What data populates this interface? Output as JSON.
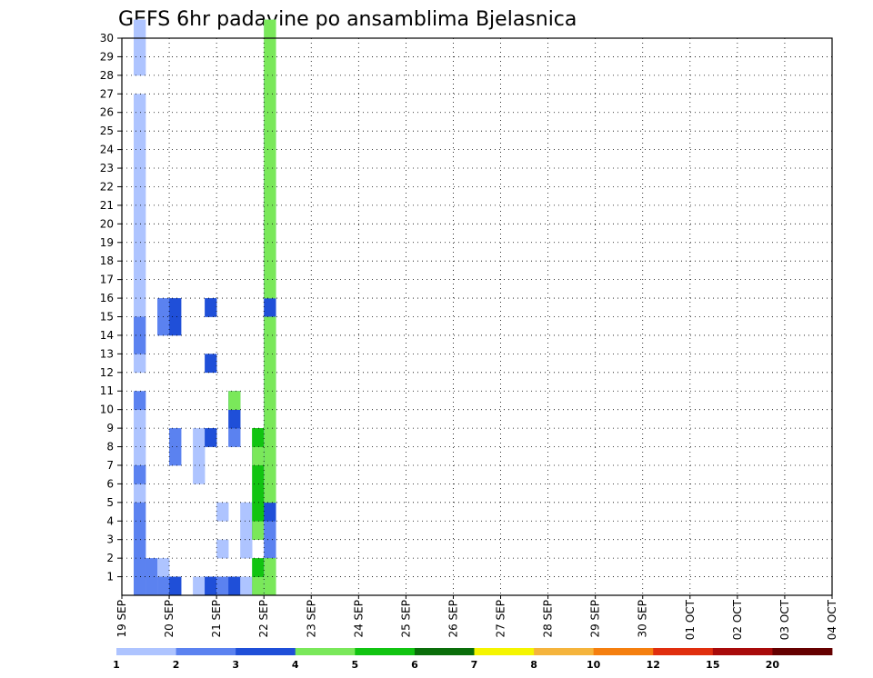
{
  "chart_data": {
    "type": "heatmap",
    "title": "GEFS 6hr padavine po ansamblima Bjelasnica",
    "xlabel": "",
    "ylabel": "",
    "ylim": [
      0,
      30
    ],
    "y_ticks": [
      "1",
      "2",
      "3",
      "4",
      "5",
      "6",
      "7",
      "8",
      "9",
      "10",
      "11",
      "12",
      "13",
      "14",
      "15",
      "16",
      "17",
      "18",
      "19",
      "20",
      "21",
      "22",
      "23",
      "24",
      "25",
      "26",
      "27",
      "28",
      "29",
      "30"
    ],
    "x_ticks": [
      "19 SEP",
      "20 SEP",
      "21 SEP",
      "22 SEP",
      "23 SEP",
      "24 SEP",
      "25 SEP",
      "26 SEP",
      "27 SEP",
      "28 SEP",
      "29 SEP",
      "30 SEP",
      "01 OCT",
      "02 OCT",
      "03 OCT",
      "04 OCT"
    ],
    "time_steps_per_day": 4,
    "grid": true,
    "legend": {
      "placement": "bottom",
      "levels": [
        "1",
        "2",
        "3",
        "4",
        "5",
        "6",
        "7",
        "8",
        "10",
        "12",
        "15",
        "20"
      ],
      "colors": [
        "#aec4ff",
        "#5b82f0",
        "#1f4fd8",
        "#7ae85a",
        "#11c411",
        "#0a6e0a",
        "#f5f500",
        "#f5b43c",
        "#f57f0f",
        "#e02e0e",
        "#a80a0a",
        "#650000"
      ]
    },
    "cells": [
      [
        1,
        1,
        0
      ],
      [
        1,
        1,
        1
      ],
      [
        1,
        1,
        2
      ],
      [
        1,
        1,
        3
      ],
      [
        1,
        1,
        5
      ],
      [
        1,
        1,
        6
      ],
      [
        1,
        1,
        7
      ],
      [
        1,
        1,
        8
      ],
      [
        1,
        1,
        9
      ],
      [
        1,
        1,
        12
      ],
      [
        1,
        1,
        15
      ],
      [
        1,
        1,
        16
      ],
      [
        1,
        1,
        17
      ],
      [
        1,
        1,
        18
      ],
      [
        1,
        1,
        19
      ],
      [
        1,
        1,
        20
      ],
      [
        1,
        1,
        21
      ],
      [
        1,
        1,
        22
      ],
      [
        1,
        1,
        23
      ],
      [
        1,
        1,
        24
      ],
      [
        1,
        1,
        25
      ],
      [
        1,
        1,
        26
      ],
      [
        1,
        1,
        28
      ],
      [
        1,
        1,
        29
      ],
      [
        1,
        1,
        30
      ],
      [
        1,
        2,
        0
      ],
      [
        1,
        2,
        1
      ],
      [
        1,
        2,
        2
      ],
      [
        1,
        2,
        3
      ],
      [
        1,
        2,
        4
      ],
      [
        1,
        2,
        6
      ],
      [
        1,
        2,
        10
      ],
      [
        1,
        2,
        13
      ],
      [
        1,
        2,
        14
      ],
      [
        2,
        1,
        0
      ],
      [
        2,
        2,
        0
      ],
      [
        2,
        2,
        1
      ],
      [
        3,
        1,
        0
      ],
      [
        3,
        1,
        1
      ],
      [
        3,
        2,
        0
      ],
      [
        3,
        2,
        14
      ],
      [
        3,
        2,
        15
      ],
      [
        4,
        1,
        0
      ],
      [
        4,
        1,
        7
      ],
      [
        4,
        1,
        8
      ],
      [
        4,
        2,
        0
      ],
      [
        4,
        2,
        7
      ],
      [
        4,
        2,
        8
      ],
      [
        4,
        3,
        0
      ],
      [
        4,
        3,
        14
      ],
      [
        4,
        3,
        15
      ],
      [
        6,
        1,
        0
      ],
      [
        6,
        1,
        6
      ],
      [
        6,
        1,
        7
      ],
      [
        6,
        1,
        8
      ],
      [
        7,
        1,
        0
      ],
      [
        7,
        2,
        0
      ],
      [
        7,
        3,
        0
      ],
      [
        7,
        3,
        8
      ],
      [
        7,
        3,
        12
      ],
      [
        7,
        3,
        15
      ],
      [
        8,
        1,
        0
      ],
      [
        8,
        1,
        2
      ],
      [
        8,
        1,
        4
      ],
      [
        8,
        2,
        0
      ],
      [
        9,
        2,
        0
      ],
      [
        9,
        2,
        8
      ],
      [
        9,
        3,
        0
      ],
      [
        9,
        3,
        9
      ],
      [
        9,
        3,
        10
      ],
      [
        9,
        4,
        10
      ],
      [
        10,
        1,
        0
      ],
      [
        10,
        1,
        2
      ],
      [
        10,
        1,
        3
      ],
      [
        10,
        1,
        4
      ],
      [
        11,
        1,
        0
      ],
      [
        11,
        1,
        3
      ],
      [
        11,
        2,
        0
      ],
      [
        11,
        2,
        3
      ],
      [
        11,
        3,
        3
      ],
      [
        11,
        3,
        7
      ],
      [
        11,
        4,
        0
      ],
      [
        11,
        4,
        3
      ],
      [
        11,
        4,
        7
      ],
      [
        11,
        4,
        8
      ],
      [
        11,
        5,
        1
      ],
      [
        11,
        5,
        4
      ],
      [
        11,
        5,
        5
      ],
      [
        11,
        5,
        6
      ],
      [
        11,
        5,
        8
      ],
      [
        12,
        1,
        0
      ],
      [
        12,
        1,
        1
      ],
      [
        12,
        1,
        2
      ],
      [
        12,
        1,
        3
      ],
      [
        12,
        1,
        7
      ],
      [
        12,
        1,
        8
      ],
      [
        12,
        1,
        9
      ],
      [
        12,
        1,
        10
      ],
      [
        12,
        1,
        12
      ],
      [
        12,
        1,
        13
      ],
      [
        12,
        1,
        14
      ],
      [
        12,
        1,
        15
      ],
      [
        12,
        1,
        16
      ],
      [
        12,
        1,
        17
      ],
      [
        12,
        1,
        18
      ],
      [
        12,
        1,
        19
      ],
      [
        12,
        1,
        20
      ],
      [
        12,
        1,
        21
      ],
      [
        12,
        1,
        22
      ],
      [
        12,
        1,
        23
      ],
      [
        12,
        1,
        24
      ],
      [
        12,
        1,
        25
      ],
      [
        12,
        1,
        26
      ],
      [
        12,
        1,
        27
      ],
      [
        12,
        1,
        28
      ],
      [
        12,
        1,
        29
      ],
      [
        12,
        1,
        30
      ],
      [
        12,
        2,
        0
      ],
      [
        12,
        2,
        1
      ],
      [
        12,
        2,
        2
      ],
      [
        12,
        2,
        3
      ],
      [
        12,
        2,
        6
      ],
      [
        12,
        2,
        7
      ],
      [
        12,
        2,
        8
      ],
      [
        12,
        2,
        9
      ],
      [
        12,
        2,
        10
      ],
      [
        12,
        2,
        11
      ],
      [
        12,
        2,
        13
      ],
      [
        12,
        2,
        14
      ],
      [
        12,
        2,
        16
      ],
      [
        12,
        2,
        17
      ],
      [
        12,
        2,
        18
      ],
      [
        12,
        2,
        19
      ],
      [
        12,
        2,
        20
      ],
      [
        12,
        2,
        21
      ],
      [
        12,
        2,
        22
      ],
      [
        12,
        2,
        24
      ],
      [
        12,
        2,
        25
      ],
      [
        12,
        2,
        26
      ],
      [
        12,
        2,
        27
      ],
      [
        12,
        3,
        1
      ],
      [
        12,
        3,
        4
      ],
      [
        12,
        3,
        5
      ],
      [
        12,
        3,
        6
      ],
      [
        12,
        3,
        7
      ],
      [
        12,
        3,
        8
      ],
      [
        12,
        3,
        9
      ],
      [
        12,
        3,
        10
      ],
      [
        12,
        3,
        11
      ],
      [
        12,
        3,
        12
      ],
      [
        12,
        3,
        13
      ],
      [
        12,
        3,
        14
      ],
      [
        12,
        3,
        15
      ],
      [
        12,
        3,
        16
      ],
      [
        12,
        3,
        17
      ],
      [
        12,
        3,
        18
      ],
      [
        12,
        3,
        19
      ],
      [
        12,
        3,
        20
      ],
      [
        12,
        3,
        21
      ],
      [
        12,
        3,
        22
      ],
      [
        12,
        3,
        24
      ],
      [
        12,
        3,
        26
      ],
      [
        12,
        3,
        27
      ],
      [
        12,
        4,
        0
      ],
      [
        12,
        4,
        1
      ],
      [
        12,
        4,
        5
      ],
      [
        12,
        4,
        6
      ],
      [
        12,
        4,
        7
      ],
      [
        12,
        4,
        8
      ],
      [
        12,
        4,
        9
      ],
      [
        12,
        4,
        10
      ],
      [
        12,
        4,
        11
      ],
      [
        12,
        4,
        12
      ],
      [
        12,
        4,
        13
      ],
      [
        12,
        4,
        14
      ],
      [
        12,
        4,
        16
      ],
      [
        12,
        4,
        17
      ],
      [
        12,
        4,
        18
      ],
      [
        12,
        4,
        19
      ],
      [
        12,
        4,
        20
      ],
      [
        12,
        4,
        21
      ],
      [
        12,
        4,
        22
      ],
      [
        12,
        4,
        23
      ],
      [
        12,
        4,
        24
      ],
      [
        12,
        4,
        25
      ],
      [
        12,
        4,
        26
      ],
      [
        12,
        4,
        27
      ],
      [
        12,
        4,
        28
      ],
      [
        12,
        4,
        29
      ],
      [
        12,
        4,
        30
      ]
    ]
  }
}
